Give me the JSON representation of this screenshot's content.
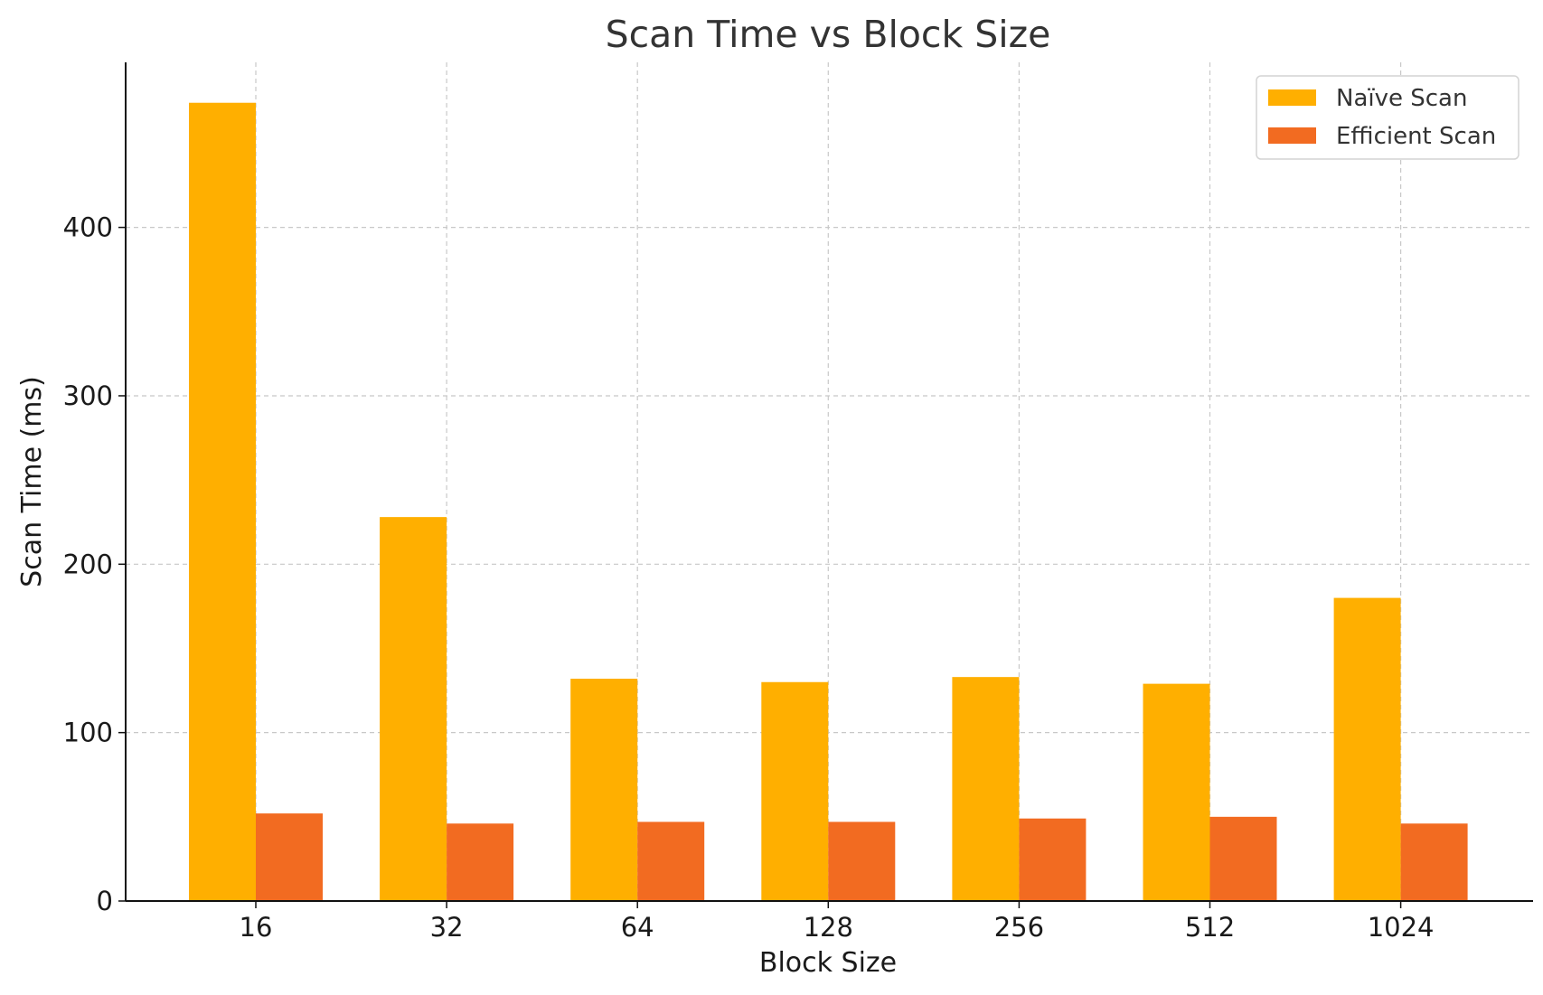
{
  "chart_data": {
    "type": "bar",
    "title": "Scan Time vs Block Size",
    "xlabel": "Block Size",
    "ylabel": "Scan Time (ms)",
    "categories": [
      "16",
      "32",
      "64",
      "128",
      "256",
      "512",
      "1024"
    ],
    "series": [
      {
        "name": "Naïve Scan",
        "color": "#FFAF00",
        "values": [
          474,
          228,
          132,
          130,
          133,
          129,
          180
        ]
      },
      {
        "name": "Efficient Scan",
        "color": "#F26B21",
        "values": [
          52,
          46,
          47,
          47,
          49,
          50,
          46
        ]
      }
    ],
    "yticks": [
      0,
      100,
      200,
      300,
      400
    ],
    "ylim": [
      0,
      498
    ],
    "grid": true,
    "legend_position": "top-right"
  }
}
